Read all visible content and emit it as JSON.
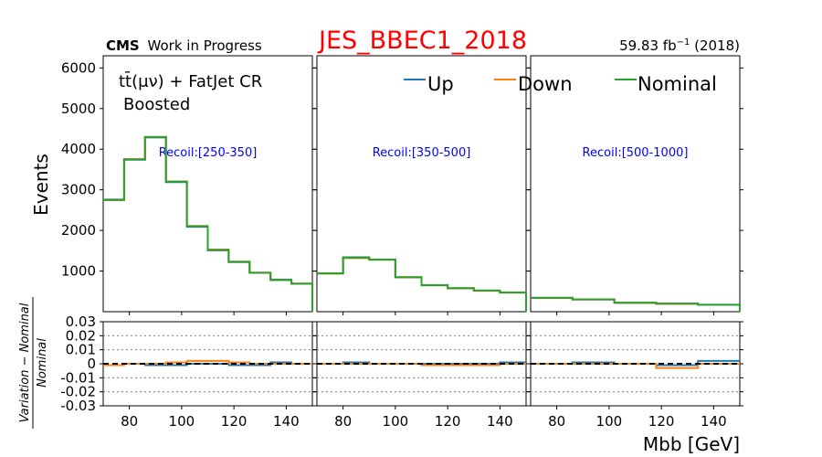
{
  "header": {
    "title": "JES_BBEC1_2018",
    "title_color": "#ff0000",
    "experiment": "CMS",
    "status": "Work in Progress",
    "lumi_value": "59.83 fb",
    "lumi_exp": "−1",
    "lumi_year": " (2018)"
  },
  "region": {
    "line1": "tt̄(μν) + FatJet CR",
    "line2": "Boosted"
  },
  "colors": {
    "Up": "#1f77b4",
    "Down": "#ff7f0e",
    "Nominal": "#2ca02c",
    "recoil_text": "#0000ff"
  },
  "chart_data": {
    "type": "line",
    "drawstyle": "steps",
    "xlabel": "Mbb [GeV]",
    "ylabel": "Events",
    "ratio_ylabel": "(Variation − Nominal) / Nominal",
    "ratio_ylabel_num": "Variation − Nominal",
    "ratio_ylabel_den": "Nominal",
    "xlim": [
      70,
      150
    ],
    "ylim": [
      0,
      6300
    ],
    "ratio_ylim": [
      -0.03,
      0.03
    ],
    "x_ticks": [
      80,
      100,
      120,
      140
    ],
    "y_ticks": [
      1000,
      2000,
      3000,
      4000,
      5000,
      6000
    ],
    "ratio_ticks": [
      0.03,
      0.02,
      0.01,
      0,
      -0.01,
      -0.02,
      -0.03
    ],
    "ratio_tick_labels": [
      "0.03",
      "0.02",
      "0.01",
      "0",
      "-0.01",
      "-0.02",
      "-0.03"
    ],
    "ratio_gridlines": [
      0.02,
      0.01,
      -0.01,
      -0.02
    ],
    "legend": [
      "Up",
      "Down",
      "Nominal"
    ],
    "panels": [
      {
        "label": "Recoil:[250-350]",
        "edges": [
          70,
          78,
          86,
          94,
          102,
          110,
          118,
          126,
          134,
          142,
          150
        ],
        "nominal": [
          2750,
          3750,
          4300,
          3200,
          2100,
          1520,
          1230,
          960,
          780,
          690
        ],
        "up": [
          2760,
          3740,
          4290,
          3190,
          2090,
          1510,
          1220,
          955,
          790,
          690
        ],
        "down": [
          2745,
          3755,
          4300,
          3205,
          2110,
          1530,
          1230,
          960,
          780,
          690
        ],
        "ratio_up": [
          -0.001,
          0.0,
          -0.001,
          -0.001,
          0.0,
          0.0,
          -0.001,
          -0.001,
          0.001,
          0.0
        ],
        "ratio_down": [
          -0.001,
          0.0,
          0.0,
          0.001,
          0.002,
          0.002,
          0.001,
          0.0,
          0.0,
          0.0
        ]
      },
      {
        "label": "Recoil:[350-500]",
        "edges": [
          70,
          80,
          90,
          100,
          110,
          120,
          130,
          140,
          150
        ],
        "nominal": [
          940,
          1330,
          1280,
          850,
          650,
          580,
          520,
          470
        ],
        "up": [
          945,
          1340,
          1285,
          845,
          655,
          575,
          520,
          475
        ],
        "down": [
          940,
          1320,
          1280,
          850,
          650,
          580,
          515,
          470
        ],
        "ratio_up": [
          0.0,
          0.001,
          0.0,
          0.0,
          0.0,
          0.0,
          0.0,
          0.001
        ],
        "ratio_down": [
          0.0,
          0.0,
          0.0,
          0.0,
          -0.001,
          -0.001,
          -0.001,
          0.0
        ]
      },
      {
        "label": "Recoil:[500-1000]",
        "edges": [
          70,
          86,
          102,
          118,
          134,
          150
        ],
        "nominal": [
          340,
          300,
          220,
          200,
          170
        ],
        "up": [
          340,
          302,
          220,
          197,
          172
        ],
        "down": [
          340,
          300,
          220,
          195,
          170
        ],
        "ratio_up": [
          0.0,
          0.001,
          0.0,
          -0.001,
          0.002
        ],
        "ratio_down": [
          0.0,
          0.0,
          0.0,
          -0.003,
          0.0
        ]
      }
    ]
  }
}
